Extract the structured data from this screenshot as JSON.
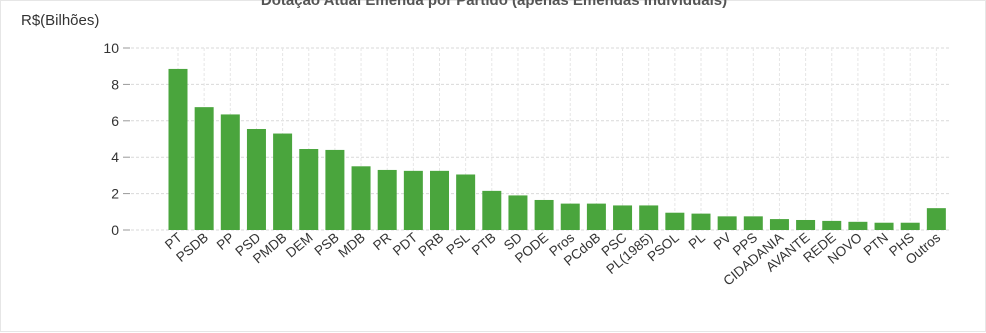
{
  "chart_data": {
    "type": "bar",
    "title": "Dotação Atual Emenda por Partido (apenas Emendas Individuais)",
    "ylabel": "R$(Bilhões)",
    "xlabel": "",
    "ylim": [
      0,
      10
    ],
    "y_ticks": [
      0,
      2,
      4,
      6,
      8,
      10
    ],
    "grid": true,
    "bar_color": "#4aa53d",
    "categories": [
      "PT",
      "PSDB",
      "PP",
      "PSD",
      "PMDB",
      "DEM",
      "PSB",
      "MDB",
      "PR",
      "PDT",
      "PRB",
      "PSL",
      "PTB",
      "SD",
      "PODE",
      "Pros",
      "PCdoB",
      "PSC",
      "PL(1985)",
      "PSOL",
      "PL",
      "PV",
      "PPS",
      "CIDADANIA",
      "AVANTE",
      "REDE",
      "NOVO",
      "PTN",
      "PHS",
      "Outros"
    ],
    "values": [
      8.85,
      6.75,
      6.35,
      5.55,
      5.3,
      4.45,
      4.4,
      3.5,
      3.3,
      3.25,
      3.25,
      3.05,
      2.15,
      1.9,
      1.65,
      1.45,
      1.45,
      1.35,
      1.35,
      0.95,
      0.9,
      0.75,
      0.75,
      0.6,
      0.55,
      0.5,
      0.45,
      0.4,
      0.4,
      1.2
    ]
  }
}
